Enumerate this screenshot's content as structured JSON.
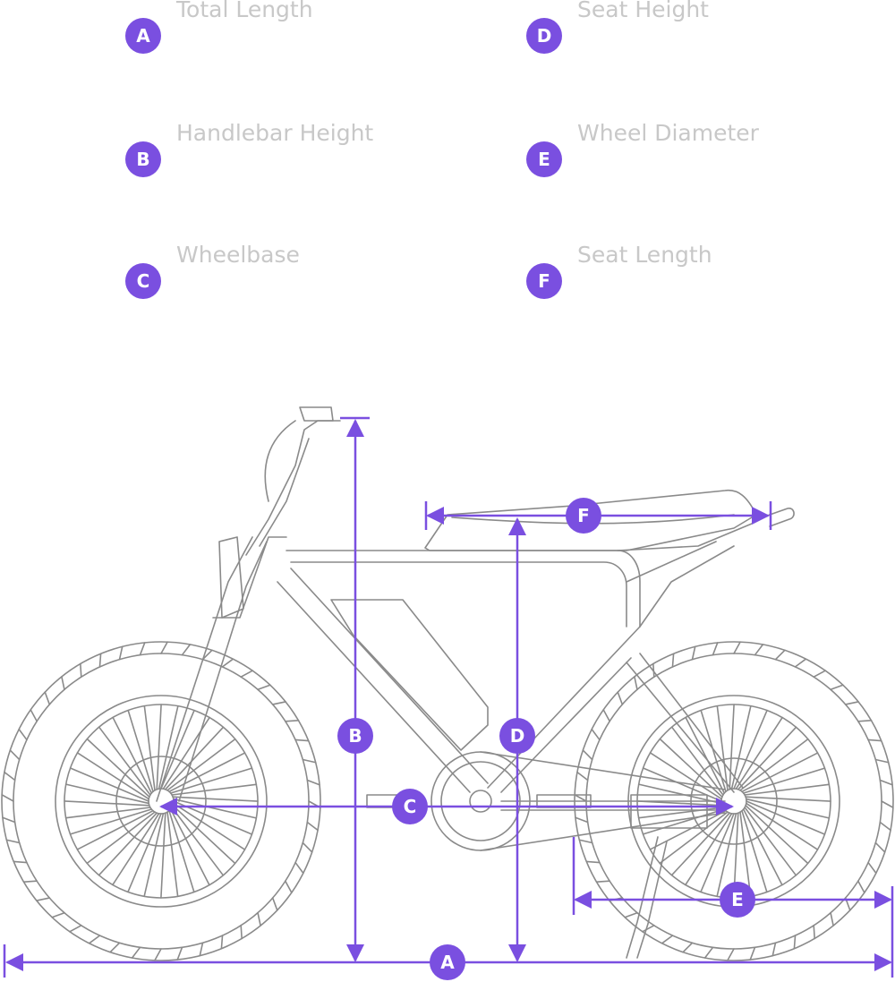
{
  "legend": [
    {
      "letter": "A",
      "label": "Total Length"
    },
    {
      "letter": "B",
      "label": "Handlebar Height"
    },
    {
      "letter": "C",
      "label": "Wheelbase"
    },
    {
      "letter": "D",
      "label": "Seat Height"
    },
    {
      "letter": "E",
      "label": "Wheel Diameter"
    },
    {
      "letter": "F",
      "label": "Seat Length"
    }
  ]
}
